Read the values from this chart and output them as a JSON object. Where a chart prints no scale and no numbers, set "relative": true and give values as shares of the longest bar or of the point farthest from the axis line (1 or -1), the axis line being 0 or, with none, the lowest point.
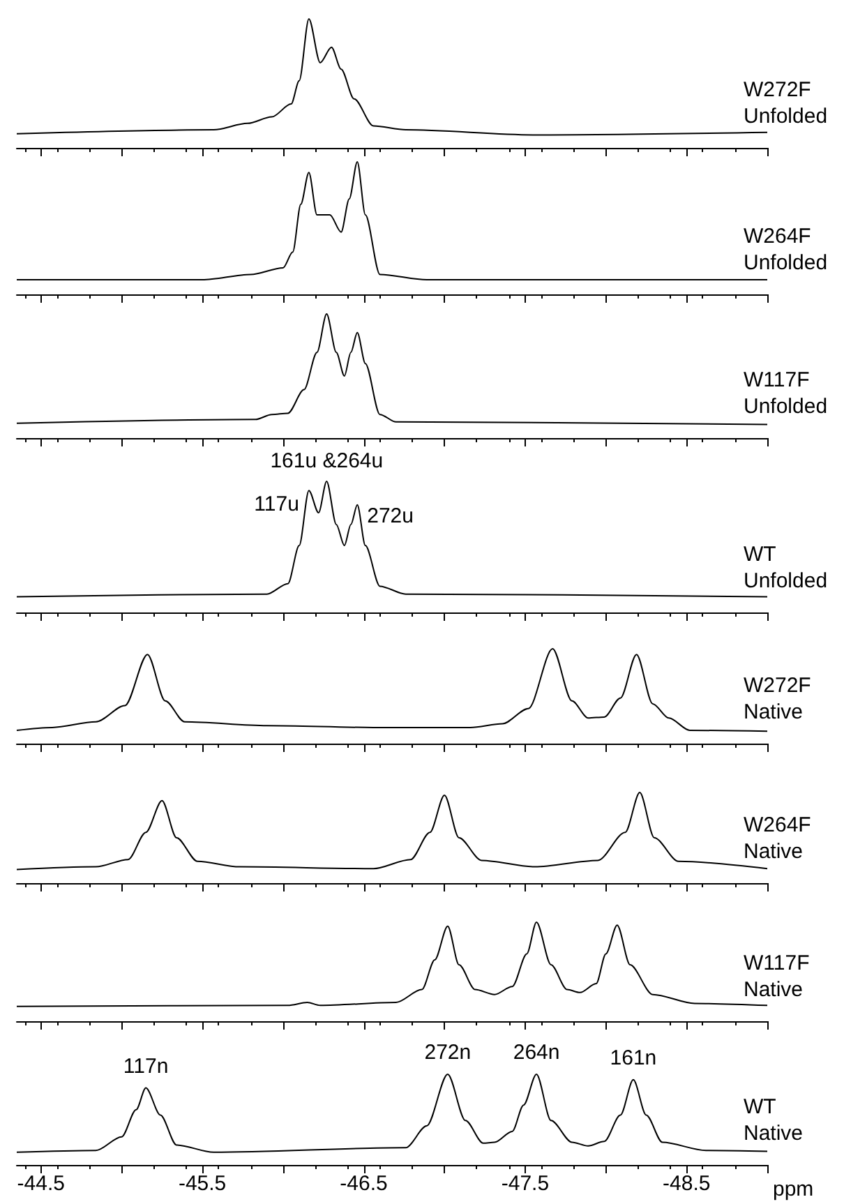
{
  "chart_data": [
    {
      "type": "line",
      "title": "W272F\nUnfolded",
      "relative": true,
      "tick_labels": false,
      "marker": "none",
      "grid": false,
      "color": "#000000",
      "xlim": [
        -44.35,
        -49.0
      ],
      "xticks": [
        -44.5,
        {
          "value": -45.0,
          "label": null
        },
        -45.5,
        {
          "value": -46.0,
          "label": null
        },
        -46.5,
        {
          "value": -47.0,
          "label": null
        },
        -47.5,
        {
          "value": -48.0,
          "label": null
        },
        -48.5,
        {
          "value": -49.0,
          "label": null
        }
      ],
      "x": [
        -44.35,
        -45.57,
        -45.78,
        -45.93,
        -46.05,
        -46.1,
        -46.16,
        -46.23,
        -46.3,
        -46.36,
        -46.44,
        -46.56,
        -46.76,
        -47.56,
        -49.0
      ],
      "values": [
        0.11,
        0.14,
        0.19,
        0.24,
        0.34,
        0.52,
        1.0,
        0.66,
        0.78,
        0.61,
        0.38,
        0.17,
        0.14,
        0.1,
        0.12
      ]
    },
    {
      "type": "line",
      "title": "W264F\nUnfolded",
      "relative": true,
      "tick_labels": false,
      "marker": "none",
      "grid": false,
      "color": "#000000",
      "xlim": [
        -44.35,
        -49.0
      ],
      "xticks": [
        -44.5,
        {
          "value": -45.0,
          "label": null
        },
        -45.5,
        {
          "value": -46.0,
          "label": null
        },
        -46.5,
        {
          "value": -47.0,
          "label": null
        },
        -47.5,
        {
          "value": -48.0,
          "label": null
        },
        -48.5,
        {
          "value": -49.0,
          "label": null
        }
      ],
      "x": [
        -44.35,
        -45.5,
        -45.8,
        -46.0,
        -46.06,
        -46.11,
        -46.16,
        -46.21,
        -46.29,
        -46.36,
        -46.41,
        -46.46,
        -46.51,
        -46.6,
        -46.89,
        -49.0
      ],
      "values": [
        0.11,
        0.11,
        0.15,
        0.2,
        0.32,
        0.68,
        0.92,
        0.6,
        0.6,
        0.47,
        0.72,
        1.0,
        0.6,
        0.15,
        0.11,
        0.11
      ]
    },
    {
      "type": "line",
      "title": "W117F\nUnfolded",
      "relative": true,
      "tick_labels": false,
      "marker": "none",
      "grid": false,
      "color": "#000000",
      "xlim": [
        -44.35,
        -49.0
      ],
      "xticks": [
        -44.5,
        {
          "value": -45.0,
          "label": null
        },
        -45.5,
        {
          "value": -46.0,
          "label": null
        },
        -46.5,
        {
          "value": -47.0,
          "label": null
        },
        -47.5,
        {
          "value": -48.0,
          "label": null
        },
        -48.5,
        {
          "value": -49.0,
          "label": null
        }
      ],
      "x": [
        -44.35,
        -45.83,
        -45.93,
        -46.03,
        -46.13,
        -46.21,
        -46.27,
        -46.33,
        -46.38,
        -46.42,
        -46.46,
        -46.51,
        -46.6,
        -46.7,
        -49.0
      ],
      "values": [
        0.12,
        0.15,
        0.19,
        0.2,
        0.39,
        0.69,
        1.0,
        0.69,
        0.5,
        0.69,
        0.85,
        0.6,
        0.19,
        0.13,
        0.11
      ]
    },
    {
      "type": "line",
      "title": "WT\nUnfolded",
      "relative": true,
      "tick_labels": false,
      "marker": "none",
      "grid": false,
      "color": "#000000",
      "xlim": [
        -44.35,
        -49.0
      ],
      "xticks": [
        -44.5,
        {
          "value": -45.0,
          "label": null
        },
        -45.5,
        {
          "value": -46.0,
          "label": null
        },
        -46.5,
        {
          "value": -47.0,
          "label": null
        },
        -47.5,
        {
          "value": -48.0,
          "label": null
        },
        -48.5,
        {
          "value": -49.0,
          "label": null
        }
      ],
      "x": [
        -44.35,
        -45.9,
        -46.03,
        -46.1,
        -46.16,
        -46.22,
        -46.27,
        -46.33,
        -46.38,
        -46.42,
        -46.46,
        -46.51,
        -46.6,
        -46.76,
        -49.0
      ],
      "values": [
        0.12,
        0.14,
        0.22,
        0.51,
        0.93,
        0.76,
        1.0,
        0.67,
        0.51,
        0.67,
        0.82,
        0.51,
        0.2,
        0.14,
        0.12
      ],
      "annotations": [
        {
          "text": "117u",
          "x": -46.16,
          "y": 0.93
        },
        {
          "text": "161u &264u",
          "x": -46.27,
          "y": 1.0
        },
        {
          "text": "272u",
          "x": -46.46,
          "y": 0.82
        }
      ]
    },
    {
      "type": "line",
      "title": "W272F\nNative",
      "relative": true,
      "tick_labels": false,
      "marker": "none",
      "grid": false,
      "color": "#000000",
      "xlim": [
        -44.35,
        -49.0
      ],
      "xticks": [
        -44.5,
        {
          "value": -45.0,
          "label": null
        },
        -45.5,
        {
          "value": -46.0,
          "label": null
        },
        -46.5,
        {
          "value": -47.0,
          "label": null
        },
        -47.5,
        {
          "value": -48.0,
          "label": null
        },
        -48.5,
        {
          "value": -49.0,
          "label": null
        }
      ],
      "x": [
        -44.35,
        -44.57,
        -44.84,
        -45.02,
        -45.16,
        -45.27,
        -45.39,
        -45.9,
        -46.56,
        -47.16,
        -47.36,
        -47.52,
        -47.67,
        -47.79,
        -47.89,
        -47.99,
        -48.09,
        -48.19,
        -48.29,
        -48.39,
        -48.52,
        -49.0
      ],
      "values": [
        0.14,
        0.17,
        0.23,
        0.4,
        0.94,
        0.45,
        0.23,
        0.19,
        0.17,
        0.17,
        0.21,
        0.37,
        1.0,
        0.45,
        0.27,
        0.28,
        0.48,
        0.94,
        0.42,
        0.27,
        0.14,
        0.13
      ]
    },
    {
      "type": "line",
      "title": "W264F\nNative",
      "relative": true,
      "tick_labels": false,
      "marker": "none",
      "grid": false,
      "color": "#000000",
      "xlim": [
        -44.35,
        -49.0
      ],
      "xticks": [
        -44.5,
        {
          "value": -45.0,
          "label": null
        },
        -45.5,
        {
          "value": -46.0,
          "label": null
        },
        -46.5,
        {
          "value": -47.0,
          "label": null
        },
        -47.5,
        {
          "value": -48.0,
          "label": null
        },
        -48.5,
        {
          "value": -49.0,
          "label": null
        }
      ],
      "x": [
        -44.35,
        -44.84,
        -45.04,
        -45.15,
        -45.25,
        -45.34,
        -45.47,
        -45.73,
        -46.56,
        -46.79,
        -46.91,
        -47.0,
        -47.09,
        -47.23,
        -47.56,
        -47.95,
        -48.12,
        -48.21,
        -48.3,
        -48.45,
        -49.0
      ],
      "values": [
        0.15,
        0.18,
        0.26,
        0.56,
        0.91,
        0.5,
        0.24,
        0.18,
        0.16,
        0.26,
        0.56,
        0.97,
        0.5,
        0.25,
        0.18,
        0.25,
        0.56,
        1.0,
        0.5,
        0.24,
        0.16
      ]
    },
    {
      "type": "line",
      "title": "W117F\nNative",
      "relative": true,
      "tick_labels": false,
      "marker": "none",
      "grid": false,
      "color": "#000000",
      "xlim": [
        -44.35,
        -49.0
      ],
      "xticks": [
        -44.5,
        {
          "value": -45.0,
          "label": null
        },
        -45.5,
        {
          "value": -46.0,
          "label": null
        },
        -46.5,
        {
          "value": -47.0,
          "label": null
        },
        -47.5,
        {
          "value": -48.0,
          "label": null
        },
        -48.5,
        {
          "value": -49.0,
          "label": null
        }
      ],
      "x": [
        -44.35,
        -46.03,
        -46.15,
        -46.23,
        -46.7,
        -46.86,
        -46.94,
        -47.02,
        -47.09,
        -47.19,
        -47.31,
        -47.42,
        -47.51,
        -47.57,
        -47.66,
        -47.76,
        -47.84,
        -47.94,
        -48.0,
        -48.07,
        -48.15,
        -48.29,
        -48.55,
        -49.0
      ],
      "values": [
        0.15,
        0.16,
        0.19,
        0.16,
        0.19,
        0.32,
        0.62,
        0.96,
        0.57,
        0.32,
        0.27,
        0.35,
        0.68,
        1.0,
        0.57,
        0.32,
        0.29,
        0.38,
        0.68,
        0.97,
        0.57,
        0.27,
        0.18,
        0.16
      ]
    },
    {
      "type": "line",
      "title": "WT\nNative",
      "xlabel": "ppm",
      "relative": true,
      "marker": "none",
      "grid": false,
      "color": "#000000",
      "xlim": [
        -44.35,
        -49.0
      ],
      "xticks": [
        -44.5,
        {
          "value": -45.0,
          "label": null
        },
        -45.5,
        {
          "value": -46.0,
          "label": null
        },
        -46.5,
        {
          "value": -47.0,
          "label": null
        },
        -47.5,
        {
          "value": -48.0,
          "label": null
        },
        -48.5,
        {
          "value": -49.0,
          "label": null
        }
      ],
      "x": [
        -44.35,
        -44.84,
        -45.0,
        -45.09,
        -45.15,
        -45.24,
        -45.34,
        -45.57,
        -46.76,
        -46.89,
        -47.02,
        -47.13,
        -47.24,
        -47.31,
        -47.42,
        -47.49,
        -47.57,
        -47.66,
        -47.79,
        -47.89,
        -47.99,
        -48.09,
        -48.17,
        -48.25,
        -48.35,
        -48.62,
        -49.0
      ],
      "values": [
        0.14,
        0.16,
        0.31,
        0.61,
        0.85,
        0.55,
        0.22,
        0.14,
        0.19,
        0.43,
        1.0,
        0.49,
        0.24,
        0.25,
        0.37,
        0.66,
        1.0,
        0.49,
        0.25,
        0.21,
        0.26,
        0.55,
        0.94,
        0.55,
        0.25,
        0.16,
        0.15
      ],
      "annotations": [
        {
          "text": "117n",
          "x": -45.15,
          "y": 0.85
        },
        {
          "text": "272n",
          "x": -47.02,
          "y": 1.0
        },
        {
          "text": "264n",
          "x": -47.57,
          "y": 1.0
        },
        {
          "text": "161n",
          "x": -48.17,
          "y": 0.94
        }
      ]
    }
  ]
}
